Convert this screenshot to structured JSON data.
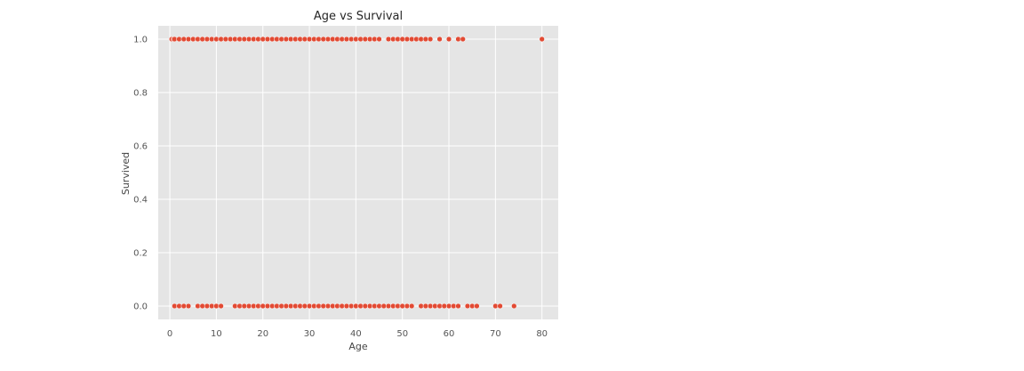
{
  "chart_data": {
    "type": "scatter",
    "title": "Age vs Survival",
    "xlabel": "Age",
    "ylabel": "Survived",
    "xlim": [
      -2.5,
      83.5
    ],
    "ylim": [
      -0.05,
      1.05
    ],
    "xticks": [
      "0",
      "10",
      "20",
      "30",
      "40",
      "50",
      "60",
      "70",
      "80"
    ],
    "yticks": [
      "0.0",
      "0.2",
      "0.4",
      "0.6",
      "0.8",
      "1.0"
    ],
    "grid": true,
    "background": "#e5e5e5",
    "grid_color": "#ffffff",
    "marker_color": "#e24a33",
    "marker_edge": "#ffffff",
    "series": [
      {
        "y": 1,
        "x": [
          0.4,
          0.8,
          1,
          2,
          3,
          4,
          5,
          6,
          7,
          8,
          9,
          10,
          11,
          12,
          13,
          14,
          15,
          16,
          17,
          18,
          19,
          20,
          21,
          22,
          23,
          24,
          25,
          26,
          27,
          28,
          29,
          30,
          31,
          32,
          33,
          34,
          35,
          36,
          37,
          38,
          39,
          40,
          41,
          42,
          43,
          44,
          45,
          47,
          48,
          49,
          50,
          51,
          52,
          53,
          54,
          55,
          56,
          58,
          60,
          62,
          63,
          80
        ]
      },
      {
        "y": 0,
        "x": [
          1,
          2,
          3,
          4,
          6,
          7,
          8,
          9,
          10,
          11,
          14,
          15,
          16,
          17,
          18,
          19,
          20,
          21,
          22,
          23,
          24,
          25,
          26,
          27,
          28,
          29,
          30,
          31,
          32,
          33,
          34,
          35,
          36,
          37,
          38,
          39,
          40,
          41,
          42,
          43,
          44,
          45,
          46,
          47,
          48,
          49,
          50,
          51,
          52,
          54,
          55,
          56,
          57,
          58,
          59,
          60,
          61,
          62,
          64,
          65,
          66,
          70,
          71,
          74
        ]
      }
    ]
  }
}
